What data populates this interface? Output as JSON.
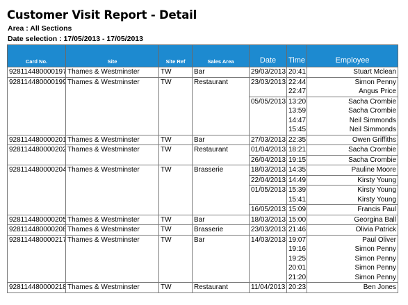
{
  "report": {
    "title": "Customer Visit Report - Detail",
    "area_label": "Area : All Sections",
    "date_selection_label": "Date selection : 17/05/2013 - 17/05/2013"
  },
  "table": {
    "headers": [
      "Card No.",
      "Site",
      "Site Ref",
      "Sales Area",
      "Date",
      "Time",
      "Employee"
    ],
    "rows": [
      {
        "card": "928114480000197",
        "site": "Thames & Westminster",
        "ref": "TW",
        "area": "Bar",
        "date": "29/03/2013",
        "time": "20:41",
        "employee": "Stuart Mclean",
        "new_group": true,
        "new_date": true
      },
      {
        "card": "928114480000199",
        "site": "Thames & Westminster",
        "ref": "TW",
        "area": "Restaurant",
        "date": "23/03/2013",
        "time": "22:44",
        "employee": "Simon Penny",
        "new_group": true,
        "new_date": true
      },
      {
        "card": "",
        "site": "",
        "ref": "",
        "area": "",
        "date": "",
        "time": "22:47",
        "employee": "Angus Price",
        "new_group": false,
        "new_date": false
      },
      {
        "card": "",
        "site": "",
        "ref": "",
        "area": "",
        "date": "05/05/2013",
        "time": "13:20",
        "employee": "Sacha Crombie",
        "new_group": false,
        "new_date": true
      },
      {
        "card": "",
        "site": "",
        "ref": "",
        "area": "",
        "date": "",
        "time": "13:59",
        "employee": "Sacha Crombie",
        "new_group": false,
        "new_date": false
      },
      {
        "card": "",
        "site": "",
        "ref": "",
        "area": "",
        "date": "",
        "time": "14:47",
        "employee": "Neil Simmonds",
        "new_group": false,
        "new_date": false
      },
      {
        "card": "",
        "site": "",
        "ref": "",
        "area": "",
        "date": "",
        "time": "15:45",
        "employee": "Neil Simmonds",
        "new_group": false,
        "new_date": false
      },
      {
        "card": "928114480000201",
        "site": "Thames & Westminster",
        "ref": "TW",
        "area": "Bar",
        "date": "27/03/2013",
        "time": "22:35",
        "employee": "Owen Griffiths",
        "new_group": true,
        "new_date": true
      },
      {
        "card": "928114480000202",
        "site": "Thames & Westminster",
        "ref": "TW",
        "area": "Restaurant",
        "date": "01/04/2013",
        "time": "18:21",
        "employee": "Sacha Crombie",
        "new_group": true,
        "new_date": true
      },
      {
        "card": "",
        "site": "",
        "ref": "",
        "area": "",
        "date": "26/04/2013",
        "time": "19:15",
        "employee": "Sacha Crombie",
        "new_group": false,
        "new_date": true
      },
      {
        "card": "928114480000204",
        "site": "Thames & Westminster",
        "ref": "TW",
        "area": "Brasserie",
        "date": "18/03/2013",
        "time": "14:35",
        "employee": "Pauline Moore",
        "new_group": true,
        "new_date": true
      },
      {
        "card": "",
        "site": "",
        "ref": "",
        "area": "",
        "date": "22/04/2013",
        "time": "14:49",
        "employee": "Kirsty Young",
        "new_group": false,
        "new_date": true
      },
      {
        "card": "",
        "site": "",
        "ref": "",
        "area": "",
        "date": "01/05/2013",
        "time": "15:39",
        "employee": "Kirsty Young",
        "new_group": false,
        "new_date": true
      },
      {
        "card": "",
        "site": "",
        "ref": "",
        "area": "",
        "date": "",
        "time": "15:41",
        "employee": "Kirsty Young",
        "new_group": false,
        "new_date": false
      },
      {
        "card": "",
        "site": "",
        "ref": "",
        "area": "",
        "date": "16/05/2013",
        "time": "15:09",
        "employee": "Francis Paul",
        "new_group": false,
        "new_date": true
      },
      {
        "card": "928114480000205",
        "site": "Thames & Westminster",
        "ref": "TW",
        "area": "Bar",
        "date": "18/03/2013",
        "time": "15:00",
        "employee": "Georgina Ball",
        "new_group": true,
        "new_date": true
      },
      {
        "card": "928114480000208",
        "site": "Thames & Westminster",
        "ref": "TW",
        "area": "Brasserie",
        "date": "23/03/2013",
        "time": "21:46",
        "employee": "Olivia Patrick",
        "new_group": true,
        "new_date": true
      },
      {
        "card": "928114480000217",
        "site": "Thames & Westminster",
        "ref": "TW",
        "area": "Bar",
        "date": "14/03/2013",
        "time": "19:07",
        "employee": "Paul Oliver",
        "new_group": true,
        "new_date": true
      },
      {
        "card": "",
        "site": "",
        "ref": "",
        "area": "",
        "date": "",
        "time": "19:16",
        "employee": "Simon Penny",
        "new_group": false,
        "new_date": false
      },
      {
        "card": "",
        "site": "",
        "ref": "",
        "area": "",
        "date": "",
        "time": "19:25",
        "employee": "Simon Penny",
        "new_group": false,
        "new_date": false
      },
      {
        "card": "",
        "site": "",
        "ref": "",
        "area": "",
        "date": "",
        "time": "20:01",
        "employee": "Simon Penny",
        "new_group": false,
        "new_date": false
      },
      {
        "card": "",
        "site": "",
        "ref": "",
        "area": "",
        "date": "",
        "time": "21:20",
        "employee": "Simon Penny",
        "new_group": false,
        "new_date": false
      },
      {
        "card": "928114480000218",
        "site": "Thames & Westminster",
        "ref": "TW",
        "area": "Restaurant",
        "date": "11/04/2013",
        "time": "20:23",
        "employee": "Ben Jones",
        "new_group": true,
        "new_date": true
      }
    ]
  }
}
